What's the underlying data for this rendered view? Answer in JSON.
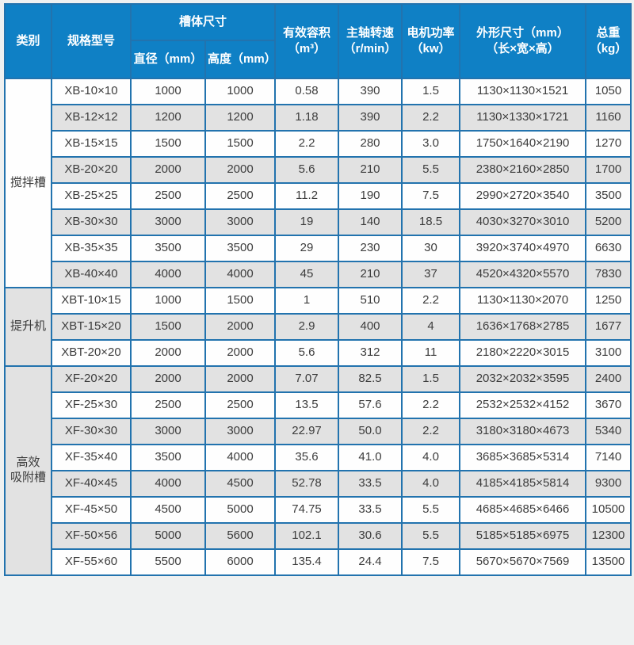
{
  "page": {
    "background": "#eff1f1"
  },
  "table": {
    "colors": {
      "header_bg": "#0f80c5",
      "header_text": "#ffffff",
      "grid_border": "#2273ae",
      "row_alt_bg": "#e2e2e2",
      "row_bg": "#fefefe",
      "cell_text": "#3c3c3c"
    },
    "headers": {
      "category": "类别",
      "model": "规格型号",
      "tank_size_group": "槽体尺寸",
      "diameter": "直径（mm）",
      "height": "高度（mm）",
      "volume": "有效容积\n（m³）",
      "speed": "主轴转速\n（r/min）",
      "power": "电机功率\n（kw）",
      "dimensions": "外形尺寸（mm）\n（长×宽×高）",
      "weight": "总重\n（kg）"
    },
    "column_names": [
      "model",
      "diameter-mm",
      "height-mm",
      "effective-volume-m3",
      "spindle-speed-rpm",
      "motor-power-kw",
      "overall-dimensions-mm",
      "total-weight-kg"
    ],
    "groups": [
      {
        "category": "搅拌槽",
        "rows": [
          [
            "XB-10×10",
            "1000",
            "1000",
            "0.58",
            "390",
            "1.5",
            "1130×1130×1521",
            "1050"
          ],
          [
            "XB-12×12",
            "1200",
            "1200",
            "1.18",
            "390",
            "2.2",
            "1130×1330×1721",
            "1160"
          ],
          [
            "XB-15×15",
            "1500",
            "1500",
            "2.2",
            "280",
            "3.0",
            "1750×1640×2190",
            "1270"
          ],
          [
            "XB-20×20",
            "2000",
            "2000",
            "5.6",
            "210",
            "5.5",
            "2380×2160×2850",
            "1700"
          ],
          [
            "XB-25×25",
            "2500",
            "2500",
            "11.2",
            "190",
            "7.5",
            "2990×2720×3540",
            "3500"
          ],
          [
            "XB-30×30",
            "3000",
            "3000",
            "19",
            "140",
            "18.5",
            "4030×3270×3010",
            "5200"
          ],
          [
            "XB-35×35",
            "3500",
            "3500",
            "29",
            "230",
            "30",
            "3920×3740×4970",
            "6630"
          ],
          [
            "XB-40×40",
            "4000",
            "4000",
            "45",
            "210",
            "37",
            "4520×4320×5570",
            "7830"
          ]
        ]
      },
      {
        "category": "提升机",
        "rows": [
          [
            "XBT-10×15",
            "1000",
            "1500",
            "1",
            "510",
            "2.2",
            "1130×1130×2070",
            "1250"
          ],
          [
            "XBT-15×20",
            "1500",
            "2000",
            "2.9",
            "400",
            "4",
            "1636×1768×2785",
            "1677"
          ],
          [
            "XBT-20×20",
            "2000",
            "2000",
            "5.6",
            "312",
            "11",
            "2180×2220×3015",
            "3100"
          ]
        ]
      },
      {
        "category": "高效\n吸附槽",
        "rows": [
          [
            "XF-20×20",
            "2000",
            "2000",
            "7.07",
            "82.5",
            "1.5",
            "2032×2032×3595",
            "2400"
          ],
          [
            "XF-25×30",
            "2500",
            "2500",
            "13.5",
            "57.6",
            "2.2",
            "2532×2532×4152",
            "3670"
          ],
          [
            "XF-30×30",
            "3000",
            "3000",
            "22.97",
            "50.0",
            "2.2",
            "3180×3180×4673",
            "5340"
          ],
          [
            "XF-35×40",
            "3500",
            "4000",
            "35.6",
            "41.0",
            "4.0",
            "3685×3685×5314",
            "7140"
          ],
          [
            "XF-40×45",
            "4000",
            "4500",
            "52.78",
            "33.5",
            "4.0",
            "4185×4185×5814",
            "9300"
          ],
          [
            "XF-45×50",
            "4500",
            "5000",
            "74.75",
            "33.5",
            "5.5",
            "4685×4685×6466",
            "10500"
          ],
          [
            "XF-50×56",
            "5000",
            "5600",
            "102.1",
            "30.6",
            "5.5",
            "5185×5185×6975",
            "12300"
          ],
          [
            "XF-55×60",
            "5500",
            "6000",
            "135.4",
            "24.4",
            "7.5",
            "5670×5670×7569",
            "13500"
          ]
        ]
      }
    ]
  }
}
